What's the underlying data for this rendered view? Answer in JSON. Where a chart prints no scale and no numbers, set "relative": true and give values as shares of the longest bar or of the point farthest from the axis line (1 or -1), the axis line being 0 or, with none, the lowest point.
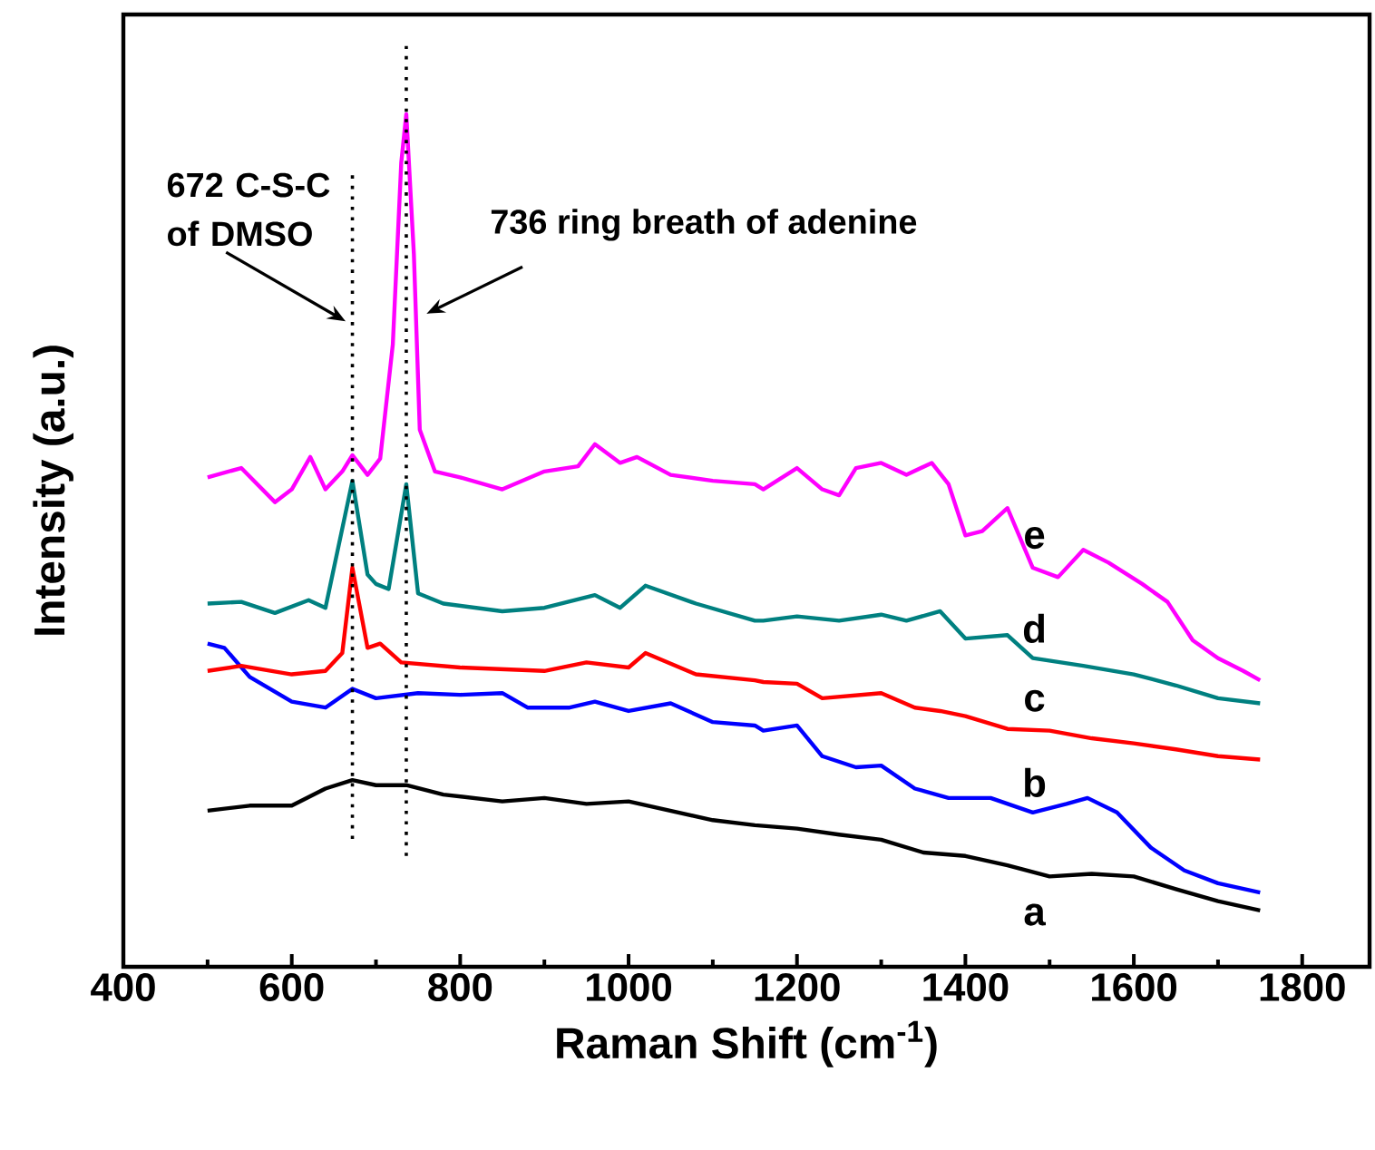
{
  "chart_data": {
    "type": "line",
    "xlabel": "Raman Shift (cm$^{-1}$)",
    "ylabel": "Intensity (a.u.)",
    "relative": true,
    "xlim": [
      400,
      1880
    ],
    "xticks": [
      400,
      600,
      800,
      1000,
      1200,
      1400,
      1600,
      1800
    ],
    "legend": false,
    "grid": false,
    "marker": "none",
    "line_style": "solid",
    "series": [
      {
        "name": "a",
        "color": "#000000",
        "x": [
          500,
          550,
          600,
          640,
          672,
          700,
          736,
          780,
          850,
          900,
          950,
          1000,
          1050,
          1100,
          1150,
          1200,
          1250,
          1300,
          1350,
          1400,
          1450,
          1500,
          1550,
          1600,
          1650,
          1700,
          1750
        ],
        "values": [
          0.183,
          0.189,
          0.189,
          0.209,
          0.219,
          0.213,
          0.213,
          0.202,
          0.194,
          0.198,
          0.191,
          0.194,
          0.183,
          0.172,
          0.166,
          0.162,
          0.155,
          0.149,
          0.134,
          0.13,
          0.119,
          0.106,
          0.109,
          0.106,
          0.091,
          0.077,
          0.066
        ]
      },
      {
        "name": "b",
        "color": "#0000ff",
        "x": [
          500,
          520,
          550,
          600,
          640,
          672,
          700,
          750,
          800,
          850,
          880,
          930,
          960,
          1000,
          1050,
          1100,
          1150,
          1160,
          1200,
          1230,
          1270,
          1300,
          1340,
          1380,
          1430,
          1480,
          1520,
          1545,
          1580,
          1620,
          1660,
          1700,
          1750
        ],
        "values": [
          0.379,
          0.374,
          0.34,
          0.311,
          0.304,
          0.326,
          0.315,
          0.321,
          0.319,
          0.321,
          0.304,
          0.304,
          0.311,
          0.3,
          0.309,
          0.287,
          0.283,
          0.277,
          0.283,
          0.247,
          0.234,
          0.236,
          0.209,
          0.198,
          0.198,
          0.181,
          0.191,
          0.198,
          0.181,
          0.14,
          0.113,
          0.098,
          0.087
        ]
      },
      {
        "name": "c",
        "color": "#ff0000",
        "x": [
          500,
          540,
          600,
          640,
          660,
          672,
          690,
          705,
          730,
          800,
          900,
          950,
          1000,
          1020,
          1080,
          1150,
          1160,
          1200,
          1230,
          1300,
          1340,
          1370,
          1400,
          1450,
          1500,
          1550,
          1600,
          1650,
          1700,
          1750
        ],
        "values": [
          0.347,
          0.353,
          0.343,
          0.347,
          0.368,
          0.468,
          0.374,
          0.379,
          0.357,
          0.351,
          0.347,
          0.357,
          0.351,
          0.368,
          0.343,
          0.336,
          0.334,
          0.332,
          0.315,
          0.321,
          0.304,
          0.3,
          0.294,
          0.279,
          0.277,
          0.268,
          0.262,
          0.255,
          0.247,
          0.243
        ]
      },
      {
        "name": "d",
        "color": "#008080",
        "x": [
          500,
          540,
          580,
          620,
          640,
          672,
          690,
          700,
          715,
          736,
          750,
          780,
          850,
          900,
          960,
          990,
          1020,
          1080,
          1150,
          1160,
          1200,
          1250,
          1300,
          1330,
          1370,
          1400,
          1450,
          1480,
          1540,
          1600,
          1650,
          1700,
          1750
        ],
        "values": [
          0.426,
          0.428,
          0.415,
          0.43,
          0.421,
          0.57,
          0.46,
          0.449,
          0.443,
          0.566,
          0.438,
          0.426,
          0.417,
          0.421,
          0.436,
          0.421,
          0.447,
          0.426,
          0.406,
          0.406,
          0.411,
          0.406,
          0.413,
          0.406,
          0.417,
          0.385,
          0.389,
          0.362,
          0.353,
          0.343,
          0.33,
          0.315,
          0.309
        ]
      },
      {
        "name": "e",
        "color": "#ff00ff",
        "x": [
          500,
          540,
          580,
          600,
          622,
          640,
          660,
          672,
          690,
          705,
          720,
          730,
          736,
          745,
          752,
          770,
          800,
          850,
          900,
          940,
          960,
          990,
          1010,
          1050,
          1100,
          1150,
          1160,
          1200,
          1230,
          1250,
          1270,
          1300,
          1330,
          1360,
          1380,
          1400,
          1420,
          1450,
          1480,
          1510,
          1540,
          1570,
          1610,
          1640,
          1670,
          1700,
          1730,
          1750
        ],
        "values": [
          0.574,
          0.585,
          0.545,
          0.56,
          0.598,
          0.56,
          0.581,
          0.6,
          0.577,
          0.596,
          0.73,
          0.943,
          1.0,
          0.836,
          0.63,
          0.581,
          0.574,
          0.56,
          0.581,
          0.587,
          0.613,
          0.591,
          0.598,
          0.577,
          0.57,
          0.566,
          0.56,
          0.585,
          0.56,
          0.553,
          0.585,
          0.591,
          0.577,
          0.591,
          0.566,
          0.506,
          0.511,
          0.538,
          0.468,
          0.457,
          0.489,
          0.474,
          0.449,
          0.428,
          0.383,
          0.362,
          0.347,
          0.336
        ]
      }
    ],
    "ref_lines": [
      {
        "axis": "x",
        "value": 672,
        "label": "672 C-S-C of DMSO",
        "line_style": "dotted",
        "color": "#000000"
      },
      {
        "axis": "x",
        "value": 736,
        "label": "736 ring breath of adenine",
        "line_style": "dotted",
        "color": "#000000"
      }
    ]
  }
}
